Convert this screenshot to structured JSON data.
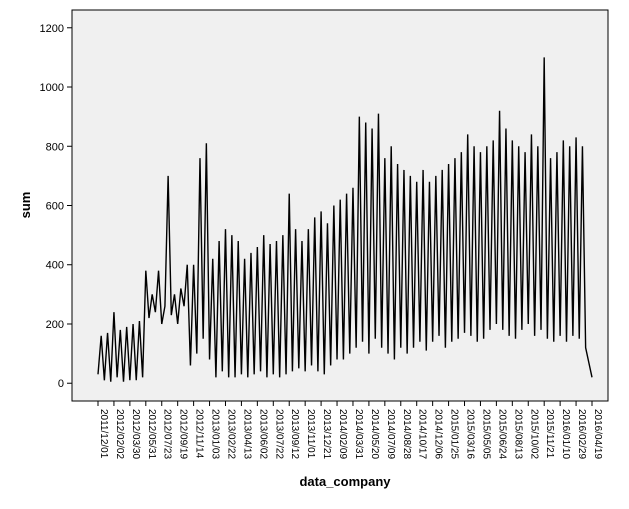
{
  "chart_data": {
    "type": "line",
    "title": "",
    "xlabel": "data_company",
    "ylabel": "sum",
    "ylim": [
      -60,
      1260
    ],
    "yticks": [
      0,
      200,
      400,
      600,
      800,
      1000,
      1200
    ],
    "x_tick_labels": [
      "2011/12/01",
      "2012/02/02",
      "2012/03/30",
      "2012/05/31",
      "2012/07/23",
      "2012/09/19",
      "2012/11/14",
      "2013/01/03",
      "2013/02/22",
      "2013/04/13",
      "2013/06/02",
      "2013/07/22",
      "2013/09/12",
      "2013/11/01",
      "2013/12/21",
      "2014/02/09",
      "2014/03/31",
      "2014/05/20",
      "2014/07/09",
      "2014/08/28",
      "2014/10/17",
      "2014/12/06",
      "2015/01/25",
      "2015/03/16",
      "2015/05/05",
      "2015/06/24",
      "2015/08/13",
      "2015/10/02",
      "2015/11/21",
      "2016/01/10",
      "2016/02/29",
      "2016/04/19"
    ],
    "grid": false,
    "legend": "none",
    "line_color": "#000000",
    "plot_background": "#f0f0f0",
    "series": [
      {
        "values": [
          30,
          160,
          10,
          170,
          5,
          240,
          20,
          180,
          5,
          190,
          10,
          200,
          10,
          210,
          20,
          380,
          220,
          300,
          240,
          380,
          200,
          260,
          700,
          230,
          300,
          200,
          320,
          260,
          400,
          60,
          400,
          100,
          760,
          150,
          810,
          80,
          420,
          20,
          480,
          40,
          520,
          20,
          500,
          20,
          480,
          30,
          420,
          20,
          440,
          30,
          460,
          40,
          500,
          20,
          470,
          30,
          480,
          20,
          500,
          30,
          640,
          40,
          520,
          50,
          480,
          40,
          520,
          60,
          560,
          40,
          580,
          30,
          540,
          60,
          600,
          80,
          620,
          80,
          640,
          100,
          660,
          120,
          900,
          140,
          880,
          100,
          860,
          150,
          910,
          120,
          760,
          100,
          800,
          80,
          740,
          120,
          720,
          100,
          700,
          120,
          680,
          140,
          720,
          110,
          680,
          140,
          700,
          160,
          720,
          120,
          740,
          140,
          760,
          150,
          780,
          170,
          840,
          160,
          800,
          140,
          780,
          150,
          800,
          180,
          820,
          200,
          920,
          180,
          860,
          160,
          820,
          150,
          800,
          180,
          780,
          200,
          840,
          160,
          800,
          180,
          1100,
          150,
          760,
          140,
          780,
          160,
          820,
          140,
          800,
          160,
          830,
          150,
          800,
          120,
          70,
          20
        ]
      }
    ]
  }
}
